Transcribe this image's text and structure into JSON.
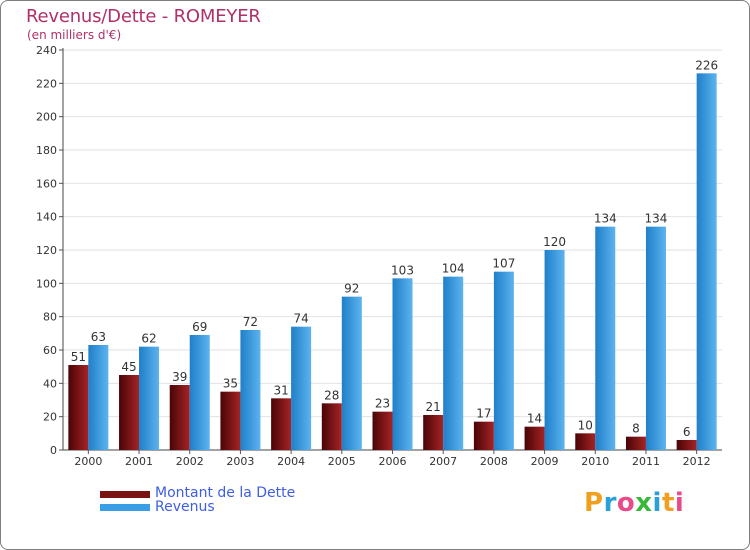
{
  "chart_data": {
    "type": "bar",
    "title": "Revenus/Dette - ROMEYER",
    "subtitle": "(en milliers d'€)",
    "xlabel": "",
    "ylabel": "",
    "ylim": [
      0,
      240
    ],
    "yticks": [
      0,
      20,
      40,
      60,
      80,
      100,
      120,
      140,
      160,
      180,
      200,
      220,
      240
    ],
    "grid": true,
    "categories": [
      "2000",
      "2001",
      "2002",
      "2003",
      "2004",
      "2005",
      "2006",
      "2007",
      "2008",
      "2009",
      "2010",
      "2011",
      "2012"
    ],
    "series": [
      {
        "name": "Montant de la Dette",
        "color": "#7a1214",
        "values": [
          51,
          45,
          39,
          35,
          31,
          28,
          23,
          21,
          17,
          14,
          10,
          8,
          6
        ]
      },
      {
        "name": "Revenus",
        "color": "#3a9ee6",
        "values": [
          63,
          62,
          69,
          72,
          74,
          92,
          103,
          104,
          107,
          120,
          134,
          134,
          226
        ]
      }
    ],
    "legend_position": "bottom-left"
  },
  "logo": {
    "text": "Proxiti",
    "letters": [
      "P",
      "r",
      "o",
      "x",
      "i",
      "t",
      "i"
    ],
    "colors": [
      "#f0a020",
      "#2aa0d8",
      "#e84a8a",
      "#3ab83a",
      "#2aa0d8",
      "#f0a020",
      "#e84a8a"
    ]
  }
}
